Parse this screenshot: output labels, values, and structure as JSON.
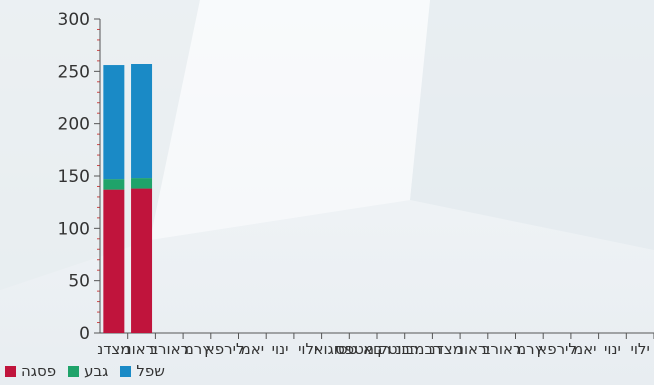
{
  "chart_data": {
    "type": "bar",
    "stacked": true,
    "categories": [
      "מצדנ",
      "יראונ",
      "ראורב",
      "ץרמ",
      "לירפא",
      "יאמ",
      "ינוי",
      "ילוי",
      "טסוגוא",
      "רבמטפס",
      "רבוטקוא",
      "רבמבונ",
      "מצדנ",
      "יראונ",
      "ראורב",
      "ץרמ",
      "לירפא",
      "יאמ",
      "ינוי",
      "ילוי"
    ],
    "series": [
      {
        "name": "פסגה",
        "color": "#c0143c",
        "values": [
          137,
          138,
          0,
          0,
          0,
          0,
          0,
          0,
          0,
          0,
          0,
          0,
          0,
          0,
          0,
          0,
          0,
          0,
          0,
          0
        ]
      },
      {
        "name": "גבע",
        "color": "#1fa36a",
        "values": [
          10,
          10,
          0,
          0,
          0,
          0,
          0,
          0,
          0,
          0,
          0,
          0,
          0,
          0,
          0,
          0,
          0,
          0,
          0,
          0
        ]
      },
      {
        "name": "שפל",
        "color": "#1a8ac6",
        "values": [
          109,
          109,
          0,
          0,
          0,
          0,
          0,
          0,
          0,
          0,
          0,
          0,
          0,
          0,
          0,
          0,
          0,
          0,
          0,
          0
        ]
      }
    ],
    "y_ticks": [
      "0",
      "50",
      "100",
      "150",
      "200",
      "250",
      "300"
    ],
    "x_tick_labels": [
      "מצדנ",
      "יראונ",
      "ראורב",
      "ץרמ",
      "לירפא",
      "יאמ",
      "ינוי",
      "ילוי",
      "טסוגוא",
      "רבמטפס",
      "רבוטקוא",
      "רבמבונ",
      "מצדנ",
      "יראונ",
      "ראורב",
      "ץרמ",
      "לירפא",
      "יאמ",
      "ינוי",
      "ילוי"
    ],
    "ylim": [
      0,
      300
    ],
    "grid": false,
    "legend_position": "bottom-left",
    "title": "",
    "xlabel": "",
    "ylabel": ""
  }
}
